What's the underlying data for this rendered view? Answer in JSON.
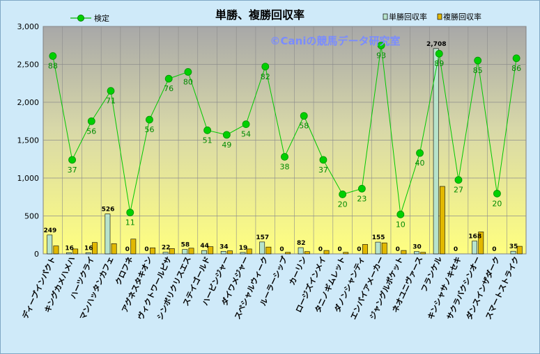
{
  "chart_data": {
    "type": "bar",
    "title": "単勝、複勝回収率",
    "watermark": "©Caniの競馬データ研究室",
    "categories": [
      "ディープインパクト",
      "キングカメハメハ",
      "ハーツクライ",
      "マンハッタンカフェ",
      "クロフネ",
      "アグネスタキオン",
      "ヴィクトワールピサ",
      "シンボリクリスエス",
      "ステイゴールド",
      "ハービンジャー",
      "ダイワメジャー",
      "スペシャルウィーク",
      "ルーラーシップ",
      "カーリン",
      "ロージズインメイ",
      "タニノギムレット",
      "ダノンシャンティ",
      "エンパイアメーカー",
      "ジャングルポケット",
      "ネオユニヴァース",
      "フランケル",
      "キンシャサノキセキ",
      "サクラバクシンオー",
      "ダンスインザダーク",
      "スマートストライク"
    ],
    "series": [
      {
        "name": "単勝回収率",
        "color": "#b8e4cc",
        "values": [
          249,
          16,
          16,
          526,
          0,
          0,
          22,
          58,
          44,
          34,
          19,
          157,
          0,
          82,
          0,
          0,
          0,
          155,
          0,
          30,
          2708,
          0,
          168,
          0,
          35
        ]
      },
      {
        "name": "複勝回収率",
        "color": "#e2b800",
        "values": [
          105,
          65,
          150,
          135,
          195,
          80,
          70,
          75,
          95,
          40,
          65,
          90,
          20,
          30,
          45,
          20,
          125,
          145,
          45,
          20,
          890,
          0,
          290,
          0,
          100
        ]
      },
      {
        "name": "検定",
        "type": "line",
        "color": "#00b800",
        "values": [
          88,
          37,
          56,
          71,
          11,
          56,
          76,
          80,
          51,
          49,
          54,
          82,
          38,
          58,
          37,
          20,
          23,
          93,
          10,
          40,
          89,
          27,
          85,
          20,
          86
        ]
      }
    ],
    "bar_labels": [
      "249",
      "16",
      "16",
      "526",
      "0",
      "0",
      "22",
      "58",
      "44",
      "34",
      "19",
      "157",
      "0",
      "82",
      "0",
      "0",
      "0",
      "155",
      "0",
      "30",
      "2,708",
      "0",
      "168",
      "0",
      "35"
    ],
    "line_y": [
      2610,
      1240,
      1750,
      2150,
      545,
      1770,
      2310,
      2400,
      1630,
      1570,
      1710,
      2470,
      1280,
      1820,
      1240,
      785,
      860,
      2750,
      520,
      1330,
      2640,
      975,
      2550,
      795,
      2580
    ],
    "ylim": [
      0,
      3000
    ],
    "yticks": [
      "0",
      "500",
      "1,000",
      "1,500",
      "2,000",
      "2,500",
      "3,000"
    ],
    "legend_position": "top",
    "grid": true
  }
}
